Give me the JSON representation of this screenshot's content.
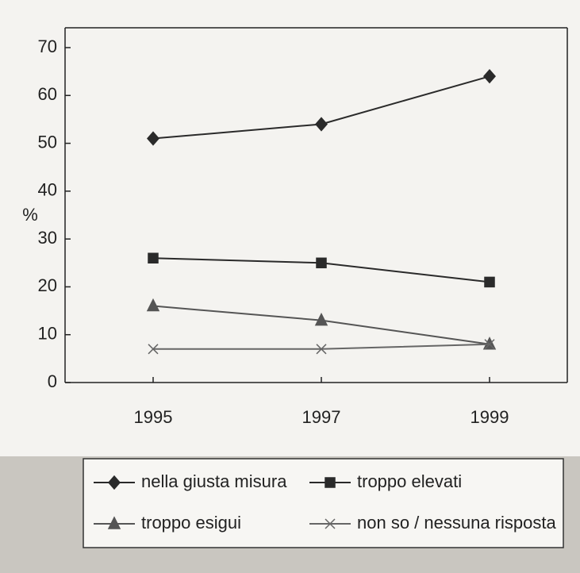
{
  "chart_data": {
    "type": "line",
    "y_label": "%",
    "categories": [
      "1995",
      "1997",
      "1999"
    ],
    "ylim": [
      0,
      70
    ],
    "yticks": [
      0,
      10,
      20,
      30,
      40,
      50,
      60,
      70
    ],
    "series": [
      {
        "name": "nella giusta misura",
        "color": "#2a2a2a",
        "marker": "diamond",
        "values": [
          51,
          54,
          64
        ]
      },
      {
        "name": "troppo elevati",
        "color": "#2a2a2a",
        "marker": "square",
        "values": [
          26,
          25,
          21
        ]
      },
      {
        "name": "troppo esigui",
        "color": "#555555",
        "marker": "triangle",
        "values": [
          16,
          13,
          8
        ]
      },
      {
        "name": "non so / nessuna risposta",
        "color": "#666666",
        "marker": "x",
        "values": [
          7,
          7,
          8
        ]
      }
    ]
  }
}
